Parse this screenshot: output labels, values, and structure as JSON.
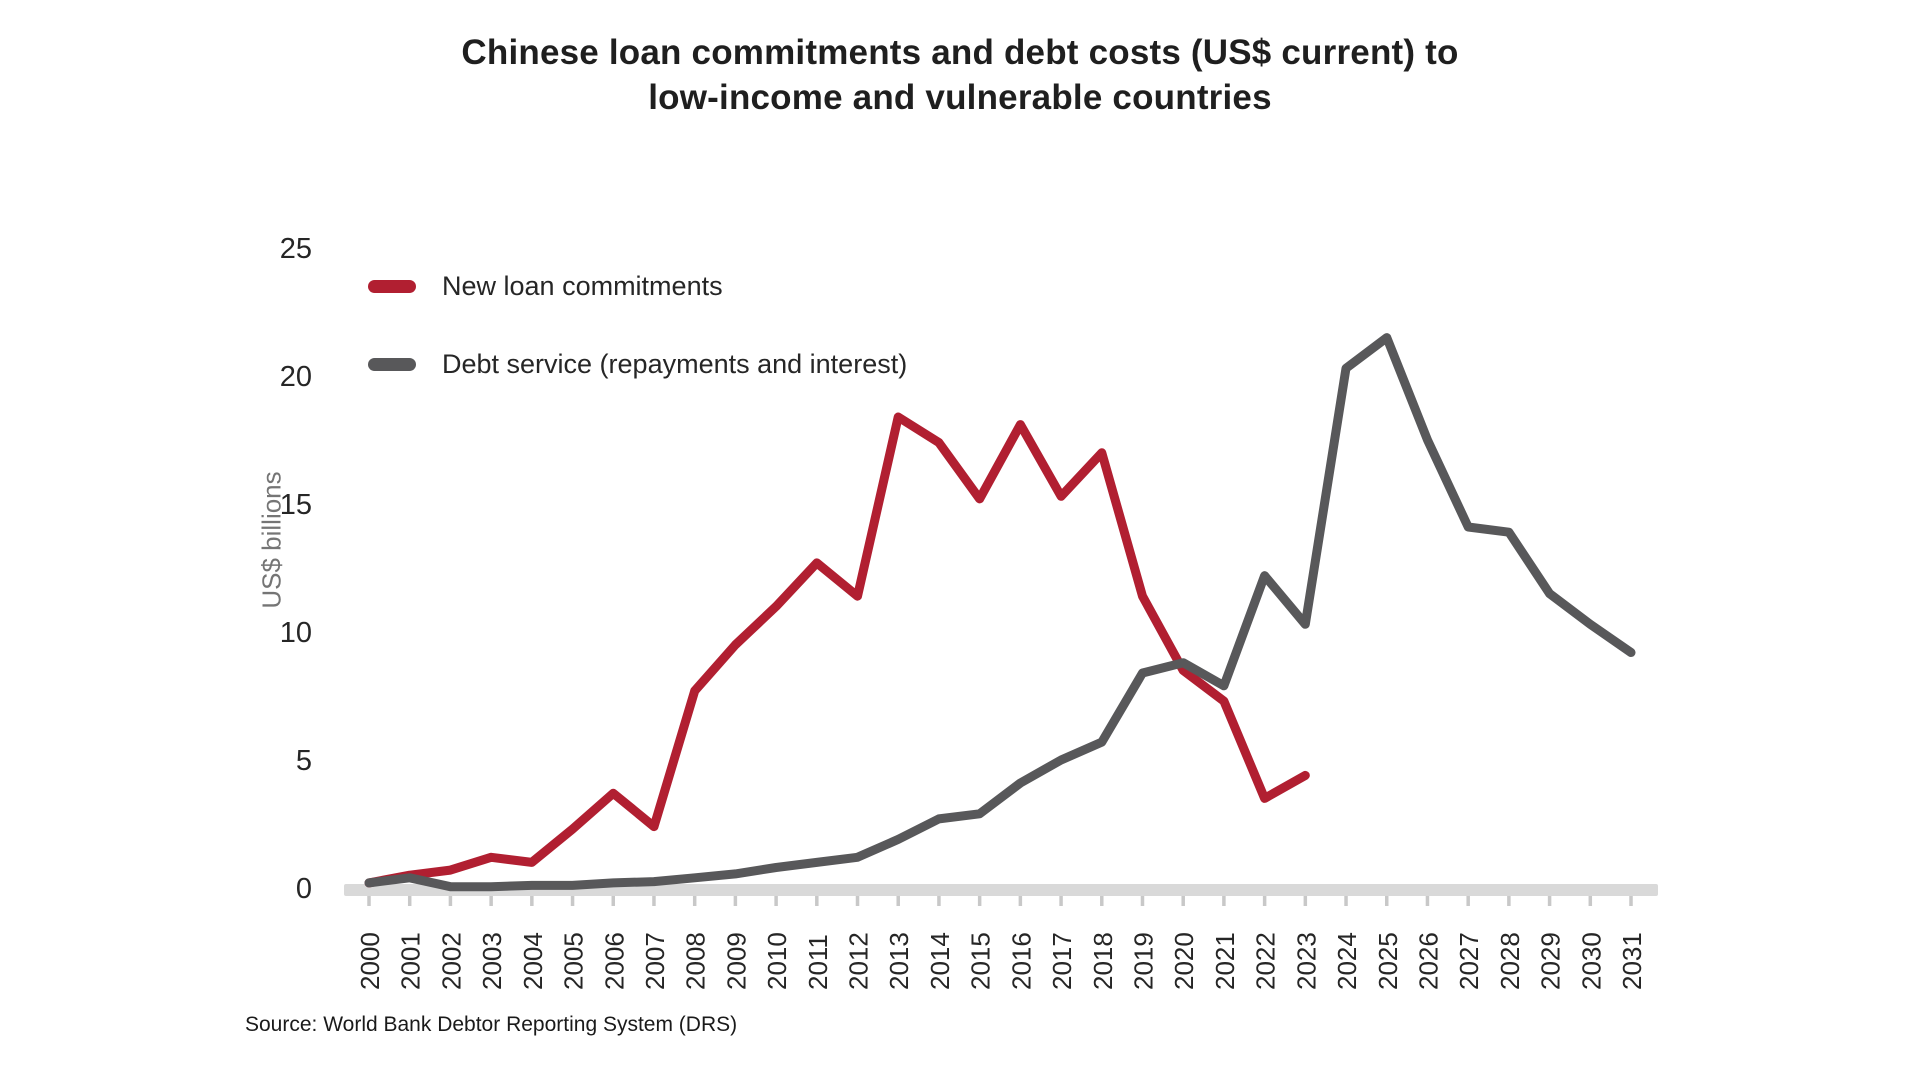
{
  "page": {
    "background": "#ffffff"
  },
  "header": {
    "title_line1": "Chinese loan commitments and debt costs (US$ current) to",
    "title_line2": "low-income and vulnerable countries"
  },
  "legend": {
    "items": [
      {
        "label": "New loan commitments",
        "color": "#B11F31"
      },
      {
        "label": "Debt service (repayments and interest)",
        "color": "#58585A"
      }
    ]
  },
  "axes": {
    "ylabel": "US$ billions",
    "yticks": [
      0,
      5,
      10,
      15,
      20,
      25
    ],
    "axis_band_color": "#D9D9D9",
    "tick_color": "#C8C8C8"
  },
  "source_note": "Source: World Bank Debtor Reporting System (DRS)",
  "chart_data": {
    "type": "line",
    "title": "Chinese loan commitments and debt costs (US$ current) to low-income and vulnerable countries",
    "xlabel": "",
    "ylabel": "US$ billions",
    "ylim": [
      0,
      25
    ],
    "grid": false,
    "legend_position": "upper-left",
    "x": [
      2000,
      2001,
      2002,
      2003,
      2004,
      2005,
      2006,
      2007,
      2008,
      2009,
      2010,
      2011,
      2012,
      2013,
      2014,
      2015,
      2016,
      2017,
      2018,
      2019,
      2020,
      2021,
      2022,
      2023,
      2024,
      2025,
      2026,
      2027,
      2028,
      2029,
      2030,
      2031
    ],
    "series": [
      {
        "name": "New loan commitments",
        "color": "#B11F31",
        "start_year": 2000,
        "values": [
          0.2,
          0.5,
          0.7,
          1.2,
          1.0,
          2.3,
          3.7,
          2.4,
          7.7,
          9.5,
          11.0,
          12.7,
          11.4,
          18.4,
          17.4,
          15.2,
          18.1,
          15.3,
          17.0,
          11.4,
          8.5,
          7.3,
          3.5,
          4.4
        ]
      },
      {
        "name": "Debt service (repayments and interest)",
        "color": "#58585A",
        "start_year": 2000,
        "values": [
          0.2,
          0.4,
          0.05,
          0.05,
          0.1,
          0.1,
          0.2,
          0.25,
          0.4,
          0.55,
          0.8,
          1.0,
          1.2,
          1.9,
          2.7,
          2.9,
          4.1,
          5.0,
          5.7,
          8.4,
          8.8,
          7.9,
          12.2,
          10.3,
          20.3,
          21.5,
          17.5,
          14.1,
          13.9,
          11.5,
          10.3,
          9.2
        ]
      }
    ],
    "source": "Source: World Bank Debtor Reporting System (DRS)"
  }
}
